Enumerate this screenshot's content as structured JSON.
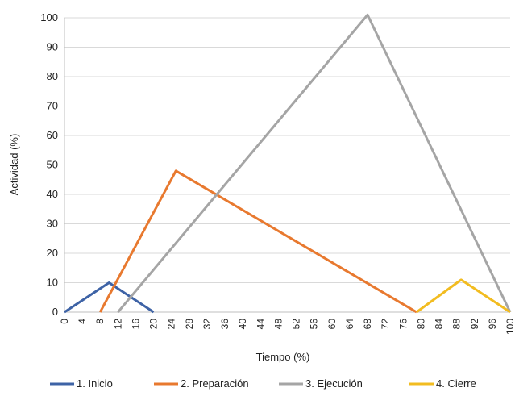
{
  "chart_data": {
    "type": "line",
    "title": "",
    "xlabel": "Tiempo (%)",
    "ylabel": "Actividad (%)",
    "xlim": [
      0,
      100
    ],
    "ylim": [
      0,
      100
    ],
    "x_ticks": [
      "0",
      "4",
      "8",
      "12",
      "16",
      "20",
      "24",
      "28",
      "32",
      "36",
      "40",
      "44",
      "48",
      "52",
      "56",
      "60",
      "64",
      "68",
      "72",
      "76",
      "80",
      "84",
      "88",
      "92",
      "96",
      "100"
    ],
    "y_ticks": [
      "0",
      "10",
      "20",
      "30",
      "40",
      "50",
      "60",
      "70",
      "80",
      "90",
      "100"
    ],
    "grid": "horizontal",
    "legend_position": "bottom",
    "series": [
      {
        "name": "1. Inicio",
        "color": "#3e63a6",
        "x": [
          0,
          10,
          20
        ],
        "y": [
          0,
          10,
          0
        ]
      },
      {
        "name": "2. Preparación",
        "color": "#e8792f",
        "x": [
          8,
          25,
          79
        ],
        "y": [
          0,
          48,
          0
        ]
      },
      {
        "name": "3. Ejecución",
        "color": "#a5a5a5",
        "x": [
          12,
          68,
          100
        ],
        "y": [
          0,
          101,
          0
        ]
      },
      {
        "name": "4. Cierre",
        "color": "#f2bc20",
        "x": [
          79,
          89,
          100
        ],
        "y": [
          0,
          11,
          0
        ]
      }
    ]
  }
}
